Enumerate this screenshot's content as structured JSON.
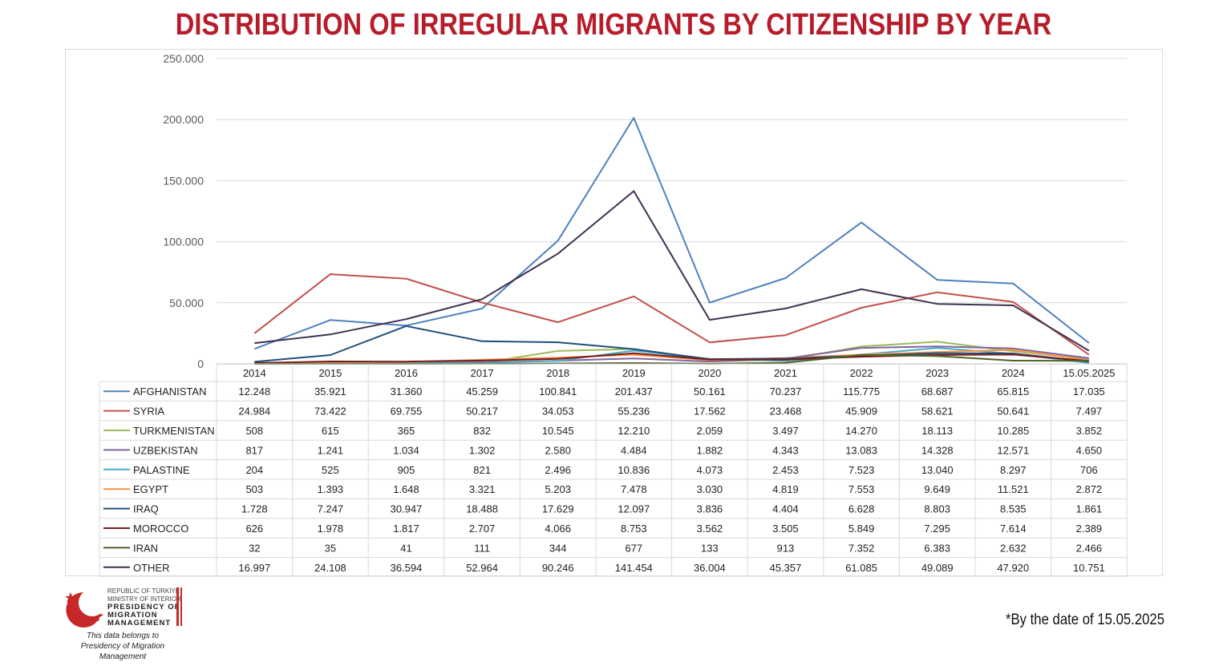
{
  "header": {
    "title": "DISTRIBUTION OF IRREGULAR MIGRANTS BY CITIZENSHIP BY YEAR"
  },
  "logo": {
    "lines": [
      "REPUBLIC OF TÜRKİYE",
      "MINISTRY OF INTERIOR",
      "PRESIDENCY OF",
      "MIGRATION MANAGEMENT"
    ],
    "credit": [
      "This data belongs to",
      "Presidency of Migration Management"
    ]
  },
  "footnote": "*By the date of 15.05.2025",
  "chart_data": {
    "type": "line",
    "title": "DISTRIBUTION OF IRREGULAR MIGRANTS BY CITIZENSHIP BY YEAR",
    "categories": [
      "2014",
      "2015",
      "2016",
      "2017",
      "2018",
      "2019",
      "2020",
      "2021",
      "2022",
      "2023",
      "2024",
      "15.05.2025"
    ],
    "ylim": [
      0,
      250000
    ],
    "yticks": [
      0,
      50000,
      100000,
      150000,
      200000,
      250000
    ],
    "ytick_labels": [
      "0",
      "50.000",
      "100.000",
      "150.000",
      "200.000",
      "250.000"
    ],
    "grid": true,
    "legend": "data-table-below",
    "series": [
      {
        "name": "AFGHANISTAN",
        "color": "#4f81bd",
        "values": [
          12248,
          35921,
          31360,
          45259,
          100841,
          201437,
          50161,
          70237,
          115775,
          68687,
          65815,
          17035
        ],
        "labels": [
          "12.248",
          "35.921",
          "31.360",
          "45.259",
          "100.841",
          "201.437",
          "50.161",
          "70.237",
          "115.775",
          "68.687",
          "65.815",
          "17.035"
        ]
      },
      {
        "name": "SYRIA",
        "color": "#c0504d",
        "values": [
          24984,
          73422,
          69755,
          50217,
          34053,
          55236,
          17562,
          23468,
          45909,
          58621,
          50641,
          7497
        ],
        "labels": [
          "24.984",
          "73.422",
          "69.755",
          "50.217",
          "34.053",
          "55.236",
          "17.562",
          "23.468",
          "45.909",
          "58.621",
          "50.641",
          "7.497"
        ]
      },
      {
        "name": "TURKMENISTAN",
        "color": "#9bbb59",
        "values": [
          508,
          615,
          365,
          832,
          10545,
          12210,
          2059,
          3497,
          14270,
          18113,
          10285,
          3852
        ],
        "labels": [
          "508",
          "615",
          "365",
          "832",
          "10.545",
          "12.210",
          "2.059",
          "3.497",
          "14.270",
          "18.113",
          "10.285",
          "3.852"
        ]
      },
      {
        "name": "UZBEKISTAN",
        "color": "#8064a2",
        "values": [
          817,
          1241,
          1034,
          1302,
          2580,
          4484,
          1882,
          4343,
          13083,
          14328,
          12571,
          4650
        ],
        "labels": [
          "817",
          "1.241",
          "1.034",
          "1.302",
          "2.580",
          "4.484",
          "1.882",
          "4.343",
          "13.083",
          "14.328",
          "12.571",
          "4.650"
        ]
      },
      {
        "name": "PALASTINE",
        "color": "#4bacc6",
        "values": [
          204,
          525,
          905,
          821,
          2496,
          10836,
          4073,
          2453,
          7523,
          13040,
          8297,
          706
        ],
        "labels": [
          "204",
          "525",
          "905",
          "821",
          "2.496",
          "10.836",
          "4.073",
          "2.453",
          "7.523",
          "13.040",
          "8.297",
          "706"
        ]
      },
      {
        "name": "EGYPT",
        "color": "#f79646",
        "values": [
          503,
          1393,
          1648,
          3321,
          5203,
          7478,
          3030,
          4819,
          7553,
          9649,
          11521,
          2872
        ],
        "labels": [
          "503",
          "1.393",
          "1.648",
          "3.321",
          "5.203",
          "7.478",
          "3.030",
          "4.819",
          "7.553",
          "9.649",
          "11.521",
          "2.872"
        ]
      },
      {
        "name": "IRAQ",
        "color": "#1f4e79",
        "values": [
          1728,
          7247,
          30947,
          18488,
          17629,
          12097,
          3836,
          4404,
          6628,
          8803,
          8535,
          1861
        ],
        "labels": [
          "1.728",
          "7.247",
          "30.947",
          "18.488",
          "17.629",
          "12.097",
          "3.836",
          "4.404",
          "6.628",
          "8.803",
          "8.535",
          "1.861"
        ]
      },
      {
        "name": "MOROCCO",
        "color": "#7b1c1c",
        "values": [
          626,
          1978,
          1817,
          2707,
          4066,
          8753,
          3562,
          3505,
          5849,
          7295,
          7614,
          2389
        ],
        "labels": [
          "626",
          "1.978",
          "1.817",
          "2.707",
          "4.066",
          "8.753",
          "3.562",
          "3.505",
          "5.849",
          "7.295",
          "7.614",
          "2.389"
        ]
      },
      {
        "name": "IRAN",
        "color": "#4f6228",
        "values": [
          32,
          35,
          41,
          111,
          344,
          677,
          133,
          913,
          7352,
          6383,
          2632,
          2466
        ],
        "labels": [
          "32",
          "35",
          "41",
          "111",
          "344",
          "677",
          "133",
          "913",
          "7.352",
          "6.383",
          "2.632",
          "2.466"
        ]
      },
      {
        "name": "OTHER",
        "color": "#403151",
        "values": [
          16997,
          24108,
          36594,
          52964,
          90246,
          141454,
          36004,
          45357,
          61085,
          49089,
          47920,
          10751
        ],
        "labels": [
          "16.997",
          "24.108",
          "36.594",
          "52.964",
          "90.246",
          "141.454",
          "36.004",
          "45.357",
          "61.085",
          "49.089",
          "47.920",
          "10.751"
        ]
      }
    ]
  }
}
